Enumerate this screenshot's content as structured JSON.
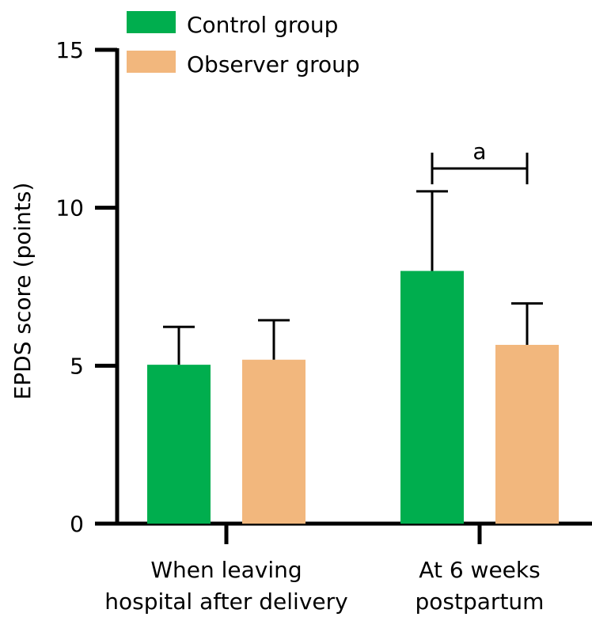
{
  "chart_data": {
    "type": "bar",
    "title": "",
    "xlabel": "",
    "ylabel": "EPDS score (points)",
    "ylim": [
      0,
      15
    ],
    "yticks": [
      0,
      5,
      10,
      15
    ],
    "grid": false,
    "legend_position": "top-left",
    "categories": [
      [
        "When leaving",
        "hospital after delivery"
      ],
      [
        "At 6 weeks",
        "postpartum"
      ]
    ],
    "series": [
      {
        "name": "Control group",
        "color": "#00AE4E",
        "values": [
          5.03,
          8.0
        ],
        "error": [
          1.2,
          2.52
        ]
      },
      {
        "name": "Observer group",
        "color": "#F2B77D",
        "values": [
          5.19,
          5.66
        ],
        "error": [
          1.25,
          1.31
        ]
      }
    ],
    "annotations": [
      {
        "text": "a",
        "category_index": 1,
        "type": "significance-bracket",
        "between": [
          "Control group",
          "Observer group"
        ]
      }
    ]
  }
}
